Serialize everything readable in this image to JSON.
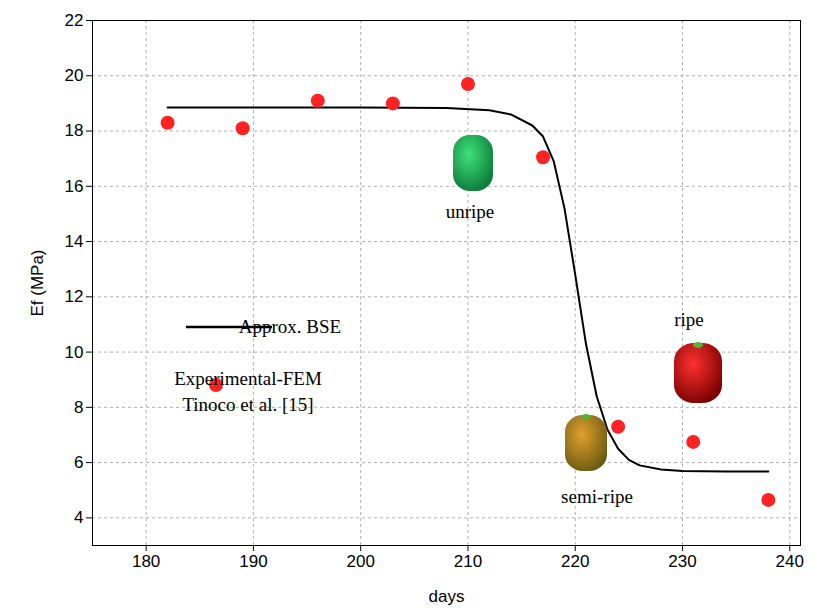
{
  "chart_data": {
    "type": "line",
    "x_label": "days",
    "y_label": "Ef (MPa)",
    "xlim": [
      175,
      241
    ],
    "ylim": [
      3,
      22
    ],
    "xticks": [
      180,
      190,
      200,
      210,
      220,
      230,
      240
    ],
    "yticks": [
      4,
      6,
      8,
      10,
      12,
      14,
      16,
      18,
      20,
      22
    ],
    "grid": true,
    "legend": "left",
    "series": [
      {
        "name": "Approx. BSE",
        "type": "line",
        "color": "#000000",
        "line_style": "solid",
        "x": [
          182,
          190,
          200,
          208,
          212,
          214,
          216,
          217,
          218,
          219,
          220,
          221,
          222,
          223,
          224,
          225,
          226,
          228,
          230,
          234,
          238
        ],
        "values": [
          18.85,
          18.85,
          18.85,
          18.83,
          18.75,
          18.6,
          18.2,
          17.8,
          16.9,
          15.2,
          12.8,
          10.3,
          8.4,
          7.2,
          6.5,
          6.1,
          5.9,
          5.75,
          5.7,
          5.68,
          5.68
        ]
      },
      {
        "name": "Experimental-FEM\nTinoco et al. [15]",
        "type": "scatter",
        "color": "#ff2222",
        "marker": "circle",
        "x": [
          182,
          189,
          196,
          203,
          210,
          217,
          224,
          231,
          238
        ],
        "values": [
          18.3,
          18.1,
          19.1,
          19.0,
          19.7,
          17.05,
          7.3,
          6.75,
          4.65
        ]
      }
    ],
    "annotations": [
      {
        "text": "unripe"
      },
      {
        "text": "semi-ripe"
      },
      {
        "text": "ripe"
      }
    ]
  }
}
